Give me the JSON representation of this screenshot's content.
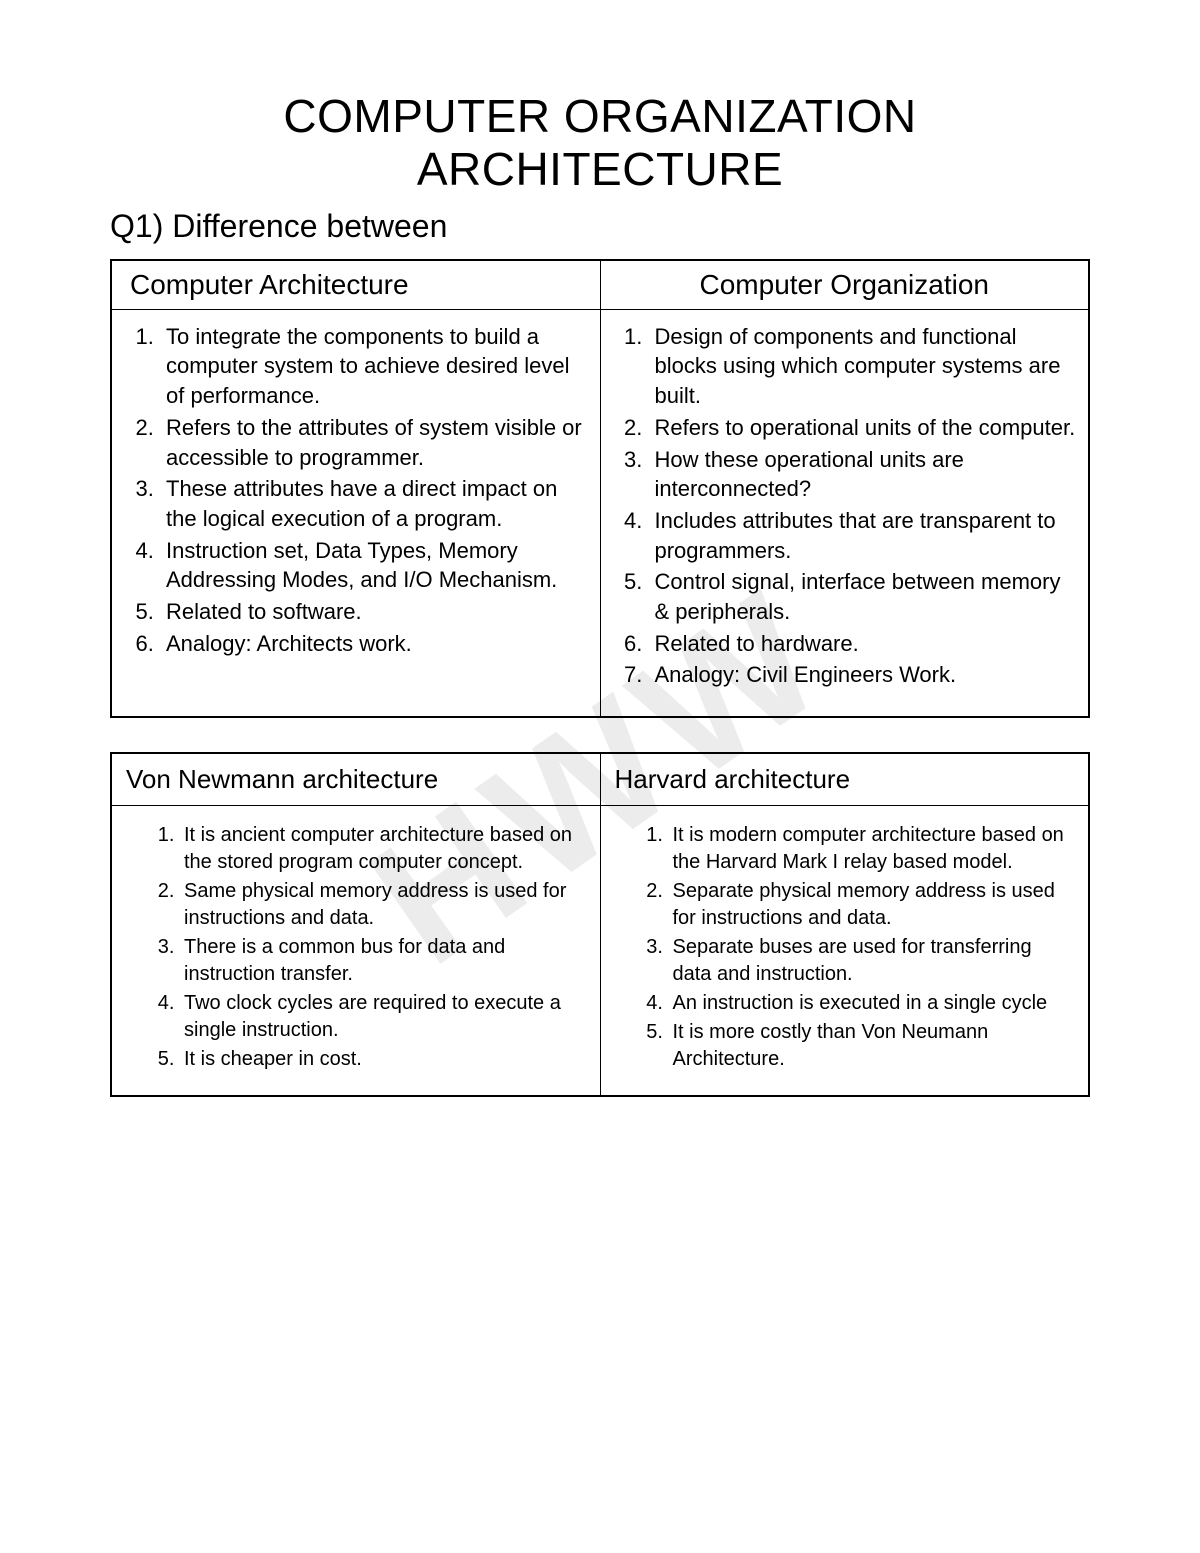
{
  "watermark_text": "HWW",
  "main_title_line1": "COMPUTER ORGANIZATION",
  "main_title_line2": "ARCHITECTURE",
  "question_heading": "Q1) Difference between",
  "table1": {
    "header_left": "Computer Architecture",
    "header_right": "Computer Organization",
    "left_items": [
      "To integrate the components to build a computer system to achieve desired level of performance.",
      "Refers to the attributes of system visible or accessible to programmer.",
      "These attributes have a direct impact on the logical execution of a program.",
      "Instruction set, Data Types, Memory Addressing Modes, and I/O Mechanism.",
      "Related to software.",
      "Analogy: Architects work."
    ],
    "right_items": [
      "Design of components and functional blocks using which computer systems are built.",
      "Refers to operational units of the computer.",
      "How these operational units are interconnected?",
      "Includes attributes that are transparent to programmers.",
      "Control signal, interface between memory & peripherals.",
      "Related to hardware.",
      "Analogy: Civil Engineers Work."
    ]
  },
  "table2": {
    "header_left": "Von Newmann architecture",
    "header_right": "Harvard architecture",
    "left_items": [
      "It is ancient computer architecture based on the stored program computer concept.",
      "Same physical memory address is used for instructions and data.",
      "There is a common bus for data and instruction transfer.",
      "Two clock cycles are required to execute a single instruction.",
      "It is cheaper in cost."
    ],
    "right_items": [
      "It is modern computer architecture based on the Harvard Mark I relay based model.",
      "Separate physical memory address is used for instructions and data.",
      "Separate buses are used for transferring data and instruction.",
      "An instruction is executed in a single cycle",
      "It is more costly than Von Neumann Architecture."
    ]
  },
  "colors": {
    "text": "#000000",
    "background": "#ffffff",
    "border": "#000000",
    "watermark": "rgba(180,180,180,0.25)"
  },
  "typography": {
    "title_fontsize": 46,
    "question_fontsize": 32,
    "header_fontsize": 28,
    "list_fontsize": 22,
    "small_list_fontsize": 20
  }
}
